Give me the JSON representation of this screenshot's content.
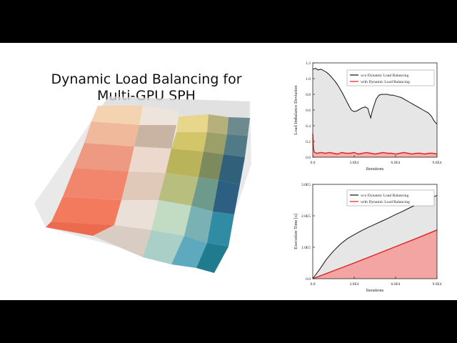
{
  "slide": {
    "title_line1": "Dynamic Load Balancing for",
    "title_line2": "Multi-GPU SPH"
  },
  "chart_data": [
    {
      "type": "line",
      "ylabel": "Load Imbalance Deviation",
      "xlabel": "Iterations",
      "xlim": [
        0,
        90000
      ],
      "ylim": [
        0,
        1.2
      ],
      "x_ticks": [
        "0.0",
        "3.0E4",
        "6.0E4",
        "9.0E4"
      ],
      "y_ticks": [
        "0.0",
        "0.2",
        "0.4",
        "0.6",
        "0.8",
        "1.0",
        "1.2"
      ],
      "legend_position": "top-right",
      "series": [
        {
          "name": "w/o Dynamic Load Balancing",
          "color": "#111111",
          "fill": "#e6e6e6",
          "x": [
            0,
            2000,
            4000,
            6000,
            8000,
            10000,
            12000,
            14000,
            16000,
            18000,
            20000,
            22000,
            24000,
            26000,
            28000,
            30000,
            32000,
            34000,
            36000,
            38000,
            40000,
            41000,
            42000,
            43000,
            44000,
            46000,
            48000,
            50000,
            52000,
            54000,
            56000,
            58000,
            60000,
            62000,
            64000,
            66000,
            68000,
            70000,
            72000,
            74000,
            76000,
            78000,
            80000,
            82000,
            84000,
            86000,
            88000,
            90000
          ],
          "y": [
            1.12,
            1.13,
            1.11,
            1.12,
            1.1,
            1.08,
            1.05,
            1.01,
            0.97,
            0.92,
            0.86,
            0.8,
            0.73,
            0.66,
            0.6,
            0.58,
            0.59,
            0.61,
            0.63,
            0.64,
            0.62,
            0.55,
            0.5,
            0.58,
            0.64,
            0.74,
            0.79,
            0.8,
            0.8,
            0.8,
            0.79,
            0.79,
            0.78,
            0.77,
            0.76,
            0.74,
            0.72,
            0.7,
            0.68,
            0.66,
            0.64,
            0.62,
            0.6,
            0.58,
            0.56,
            0.52,
            0.46,
            0.42
          ]
        },
        {
          "name": "with Dynamic Load Balancing",
          "color": "#e0211f",
          "fill": "#f3b0ad",
          "x": [
            0,
            500,
            1000,
            1500,
            3000,
            6000,
            9000,
            12000,
            15000,
            18000,
            21000,
            24000,
            27000,
            30000,
            33000,
            36000,
            39000,
            42000,
            45000,
            48000,
            51000,
            54000,
            57000,
            60000,
            63000,
            66000,
            69000,
            72000,
            75000,
            78000,
            81000,
            84000,
            87000,
            90000
          ],
          "y": [
            0.3,
            0.12,
            0.07,
            0.06,
            0.05,
            0.06,
            0.05,
            0.06,
            0.05,
            0.04,
            0.06,
            0.05,
            0.05,
            0.06,
            0.04,
            0.05,
            0.06,
            0.05,
            0.04,
            0.05,
            0.06,
            0.05,
            0.05,
            0.04,
            0.05,
            0.06,
            0.05,
            0.04,
            0.05,
            0.05,
            0.04,
            0.05,
            0.05,
            0.04
          ]
        }
      ]
    },
    {
      "type": "area",
      "ylabel": "Execution Time [s]",
      "xlabel": "Iterations",
      "xlim": [
        0,
        90000
      ],
      "ylim": [
        0,
        300000
      ],
      "x_ticks": [
        "0.0",
        "3.0E4",
        "6.0E4",
        "9.0E4"
      ],
      "y_ticks": [
        "0.0",
        "1.0E5",
        "2.0E5",
        "3.0E5"
      ],
      "legend_position": "top-left",
      "series": [
        {
          "name": "w/o Dynamic Load Balancing",
          "color": "#111111",
          "fill": "#e6e6e6",
          "x": [
            0,
            5000,
            10000,
            15000,
            20000,
            25000,
            30000,
            35000,
            40000,
            45000,
            50000,
            55000,
            60000,
            65000,
            70000,
            75000,
            80000,
            85000,
            90000
          ],
          "y": [
            0,
            30000,
            62000,
            88000,
            110000,
            127000,
            140000,
            152000,
            163000,
            173000,
            183000,
            193000,
            204000,
            214000,
            225000,
            235000,
            246000,
            256000,
            265000
          ]
        },
        {
          "name": "with Dynamic Load Balancing",
          "color": "#e0211f",
          "fill": "#f2a5a2",
          "x": [
            0,
            15000,
            30000,
            45000,
            60000,
            75000,
            90000
          ],
          "y": [
            0,
            25000,
            50000,
            76000,
            102000,
            128000,
            155000
          ]
        }
      ]
    }
  ]
}
